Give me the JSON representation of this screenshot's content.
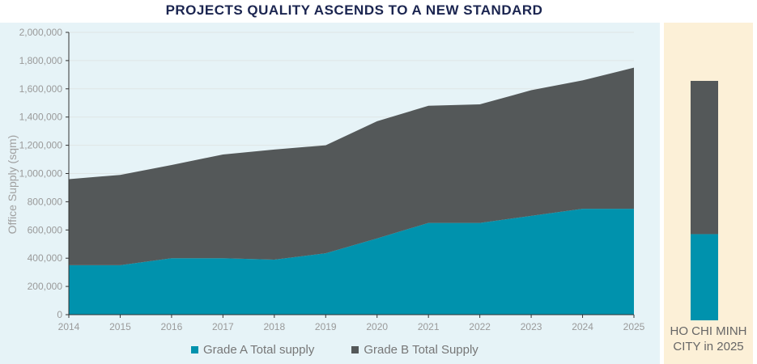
{
  "chart_data": [
    {
      "type": "area",
      "stacked": true,
      "title": "PROJECTS QUALITY ASCENDS TO A NEW STANDARD",
      "xlabel": "",
      "ylabel": "Office Supply (sqm)",
      "x": [
        2014,
        2015,
        2016,
        2017,
        2018,
        2019,
        2020,
        2021,
        2022,
        2023,
        2024,
        2025
      ],
      "ylim": [
        0,
        2000000
      ],
      "yticks": [
        "0",
        "200,000",
        "400,000",
        "600,000",
        "800,000",
        "1,000,000",
        "1,200,000",
        "1,400,000",
        "1,600,000",
        "1,800,000",
        "2,000,000"
      ],
      "grid": true,
      "legend_position": "bottom",
      "series": [
        {
          "name": "Grade A Total supply",
          "color": "#0092ad",
          "values": [
            350000,
            350000,
            400000,
            400000,
            390000,
            435000,
            540000,
            650000,
            650000,
            700000,
            750000,
            750000
          ]
        },
        {
          "name": "Grade B Total Supply",
          "color": "#545859",
          "values": [
            610000,
            640000,
            660000,
            735000,
            780000,
            765000,
            830000,
            830000,
            840000,
            890000,
            910000,
            1000000
          ]
        }
      ]
    },
    {
      "type": "bar",
      "stacked": true,
      "categories": [
        "HO CHI MINH CITY in 2025"
      ],
      "series": [
        {
          "name": "Grade A Total supply",
          "color": "#0092ad",
          "share_percent": 36
        },
        {
          "name": "Grade B Total Supply",
          "color": "#545859",
          "share_percent": 64
        }
      ]
    }
  ],
  "colors": {
    "left_background": "#e6f3f7",
    "right_background": "#fcf0d7",
    "title": "#1b2550"
  }
}
